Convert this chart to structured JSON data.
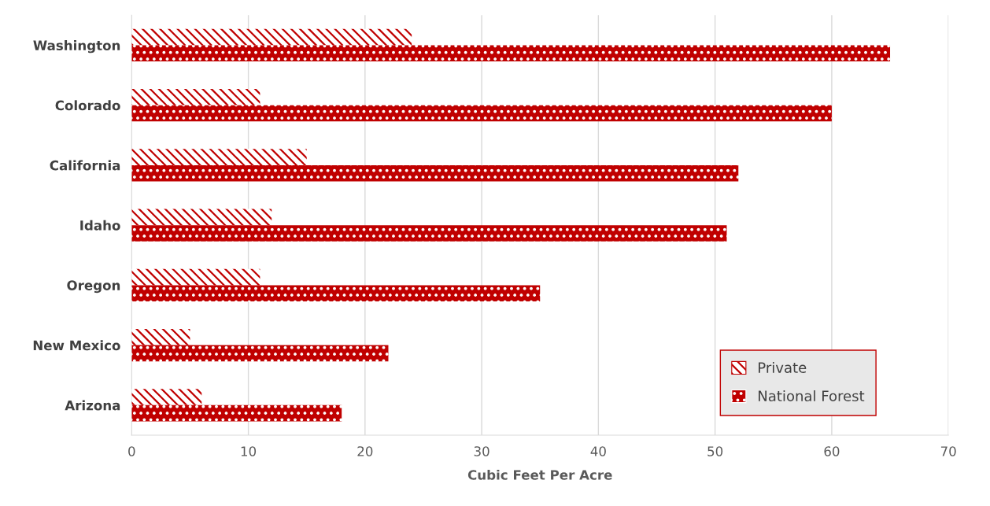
{
  "chart_data": {
    "type": "bar",
    "orientation": "horizontal",
    "xlabel": "Cubic Feet Per Acre",
    "categories": [
      "Washington",
      "Colorado",
      "California",
      "Idaho",
      "Oregon",
      "New Mexico",
      "Arizona"
    ],
    "series": [
      {
        "name": "Private",
        "color": "#c00000",
        "values": [
          24,
          11,
          15,
          12,
          11,
          5,
          6
        ]
      },
      {
        "name": "National Forest",
        "color": "#c00000",
        "values": [
          65,
          60,
          52,
          51,
          35,
          22,
          18
        ]
      }
    ],
    "xlim": [
      0,
      70
    ],
    "xticks": [
      0,
      10,
      20,
      30,
      40,
      50,
      60,
      70
    ],
    "grid": "x",
    "legend": "bottom right"
  }
}
